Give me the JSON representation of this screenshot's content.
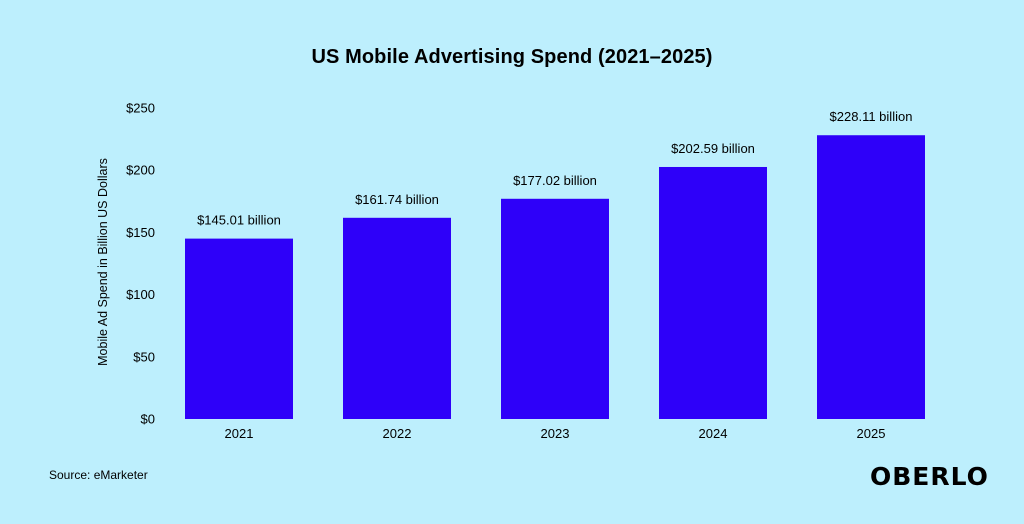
{
  "chart_data": {
    "type": "bar",
    "title": "US Mobile Advertising Spend (2021–2025)",
    "xlabel": "",
    "ylabel": "Mobile Ad Spend in Billion US Dollars",
    "categories": [
      "2021",
      "2022",
      "2023",
      "2024",
      "2025"
    ],
    "values": [
      145.01,
      161.74,
      177.02,
      202.59,
      228.11
    ],
    "data_labels": [
      "$145.01 billion",
      "$161.74 billion",
      "$177.02 billion",
      "$202.59 billion",
      "$228.11 billion"
    ],
    "ylim": [
      0,
      250
    ],
    "yticks": [
      0,
      50,
      100,
      150,
      200,
      250
    ],
    "ytick_labels": [
      "$0",
      "$50",
      "$100",
      "$150",
      "$200",
      "$250"
    ],
    "grid": false,
    "bar_color": "#2e00f9",
    "background_color": "#bdeffd"
  },
  "source": "Source: eMarketer",
  "logo": "OBERLO"
}
